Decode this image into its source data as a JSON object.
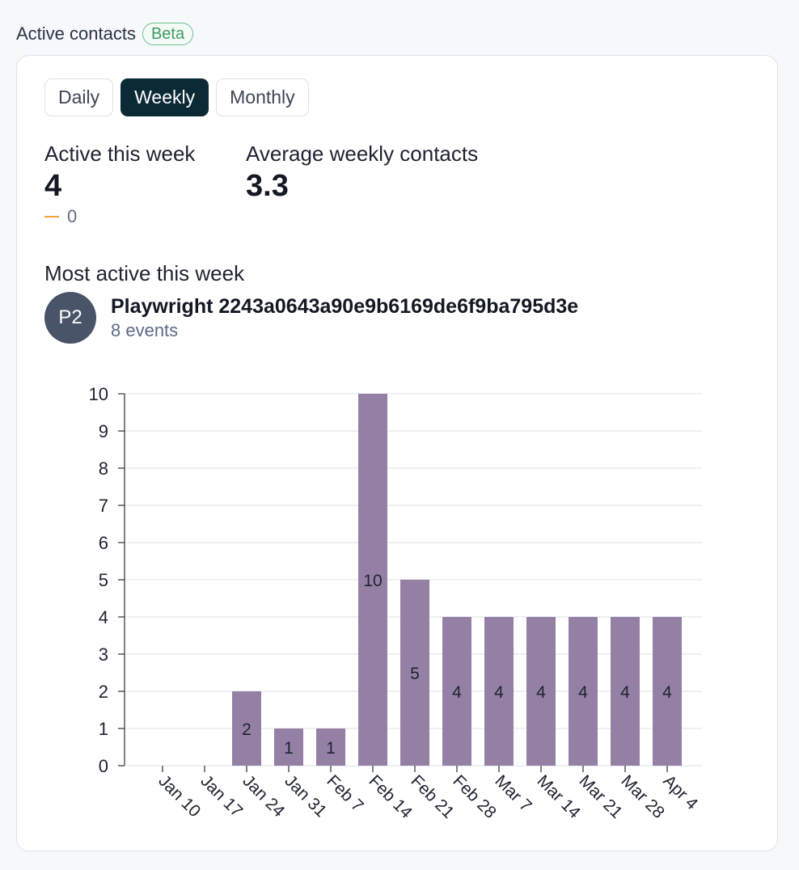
{
  "header": {
    "title": "Active contacts",
    "badge": "Beta"
  },
  "tabs": [
    {
      "label": "Daily",
      "active": false
    },
    {
      "label": "Weekly",
      "active": true
    },
    {
      "label": "Monthly",
      "active": false
    }
  ],
  "stats": {
    "active": {
      "label": "Active this week",
      "value": "4",
      "change": "0"
    },
    "average": {
      "label": "Average weekly contacts",
      "value": "3.3"
    }
  },
  "most_active": {
    "label": "Most active this week",
    "avatar": "P2",
    "name": "Playwright 2243a0643a90e9b6169de6f9ba795d3e",
    "events": "8 events"
  },
  "colors": {
    "bar": "#9580a5",
    "change_dash": "#f2a33a",
    "active_tab": "#0c2a36"
  },
  "chart_data": {
    "type": "bar",
    "categories": [
      "Jan 10",
      "Jan 17",
      "Jan 24",
      "Jan 31",
      "Feb 7",
      "Feb 14",
      "Feb 21",
      "Feb 28",
      "Mar 7",
      "Mar 14",
      "Mar 21",
      "Mar 28",
      "Apr 4"
    ],
    "values": [
      0,
      0,
      2,
      1,
      1,
      10,
      5,
      4,
      4,
      4,
      4,
      4,
      4
    ],
    "ylim": [
      0,
      10
    ],
    "yticks": [
      0,
      1,
      2,
      3,
      4,
      5,
      6,
      7,
      8,
      9,
      10
    ],
    "grid": true,
    "data_labels": true,
    "title": "",
    "xlabel": "",
    "ylabel": ""
  }
}
